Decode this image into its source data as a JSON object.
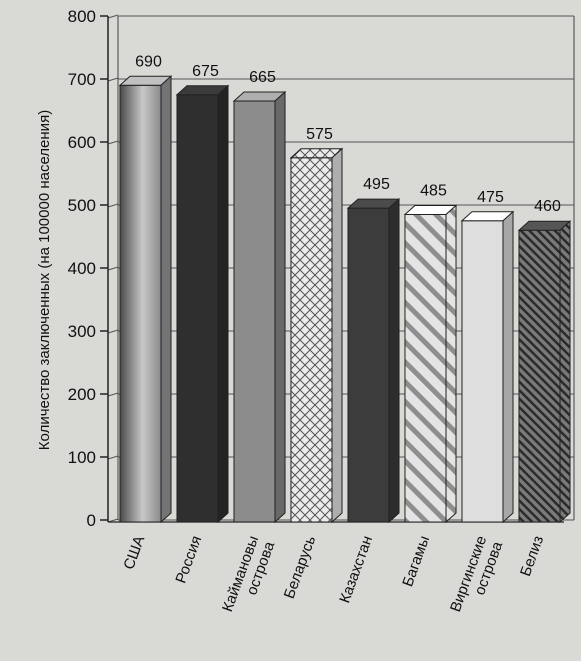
{
  "chart_data": {
    "type": "bar",
    "title": "",
    "xlabel": "",
    "ylabel": "Количество заключенных (на 100000 населения)",
    "ylim": [
      0,
      800
    ],
    "yticks": [
      0,
      100,
      200,
      300,
      400,
      500,
      600,
      700,
      800
    ],
    "grid": true,
    "categories": [
      [
        "США"
      ],
      [
        "Россия"
      ],
      [
        "Каймановы",
        "острова"
      ],
      [
        "Беларусь"
      ],
      [
        "Казахстан"
      ],
      [
        "Багамы"
      ],
      [
        "Виргинские",
        "острова"
      ],
      [
        "Белиз"
      ]
    ],
    "values": [
      690,
      675,
      665,
      575,
      495,
      485,
      475,
      460
    ],
    "value_labels": [
      "690",
      "675",
      "665",
      "575",
      "495",
      "485",
      "475",
      "460"
    ],
    "bar_styles": [
      {
        "fill": "#9a9a9a",
        "pattern": "gradient"
      },
      {
        "fill": "#2f2f2f",
        "pattern": "solid"
      },
      {
        "fill": "#8c8c8c",
        "pattern": "solid"
      },
      {
        "fill": "#e8e8e8",
        "pattern": "crosshatch"
      },
      {
        "fill": "#3c3c3c",
        "pattern": "solid"
      },
      {
        "fill": "#d0d0d0",
        "pattern": "diagonal-wide"
      },
      {
        "fill": "#dedede",
        "pattern": "solid"
      },
      {
        "fill": "#444444",
        "pattern": "diagonal-dense"
      }
    ]
  }
}
